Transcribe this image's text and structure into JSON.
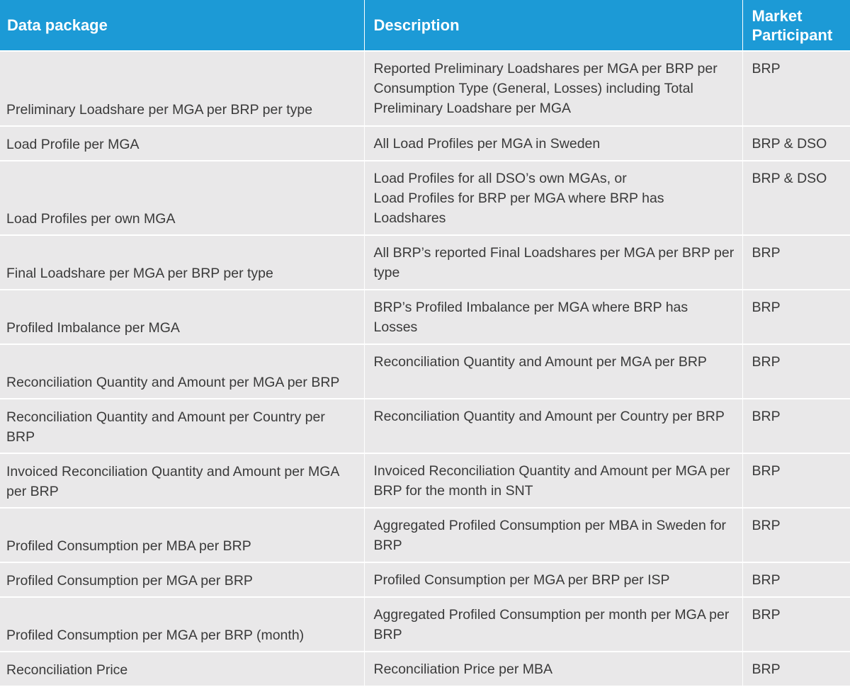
{
  "headers": {
    "package": "Data package",
    "description": "Description",
    "participant": "Market Participant"
  },
  "rows": [
    {
      "package": "Preliminary Loadshare per MGA per BRP per type",
      "description": "Reported Preliminary Loadshares per MGA per BRP per Consumption Type (General, Losses) including Total Preliminary Loadshare per MGA",
      "participant": "BRP"
    },
    {
      "package": "Load Profile per MGA",
      "description": "All Load Profiles per MGA in Sweden",
      "participant": "BRP & DSO"
    },
    {
      "package": "Load Profiles per own MGA",
      "description_lines": [
        "Load Profiles for all DSO’s own MGAs, or",
        "Load Profiles for BRP per MGA where BRP has Loadshares"
      ],
      "participant": "BRP & DSO"
    },
    {
      "package": "Final Loadshare per MGA per BRP per type",
      "description": "All BRP’s reported Final Loadshares per MGA per BRP per type",
      "participant": "BRP"
    },
    {
      "package": "Profiled Imbalance per MGA",
      "description": "BRP’s Profiled Imbalance per MGA where BRP has Losses",
      "participant": "BRP"
    },
    {
      "package": "Reconciliation Quantity and Amount per MGA per BRP",
      "description": "Reconciliation Quantity and Amount per MGA per BRP",
      "participant": "BRP"
    },
    {
      "package": "Reconciliation Quantity and Amount per Country per BRP",
      "description": "Reconciliation Quantity and Amount per Country per BRP",
      "participant": "BRP"
    },
    {
      "package": "Invoiced Reconciliation Quantity and Amount per MGA per BRP",
      "description": "Invoiced Reconciliation Quantity and Amount per MGA per BRP for the month in SNT",
      "participant": "BRP"
    },
    {
      "package": "Profiled Consumption per MBA per BRP",
      "description": "Aggregated Profiled Consumption per MBA in Sweden for BRP",
      "participant": "BRP"
    },
    {
      "package": "Profiled Consumption per MGA per BRP",
      "description": "Profiled Consumption per MGA per BRP per ISP",
      "participant": "BRP"
    },
    {
      "package": "Profiled Consumption per MGA per BRP (month)",
      "description": "Aggregated Profiled Consumption per month per MGA per BRP",
      "participant": "BRP"
    },
    {
      "package": "Reconciliation Price",
      "description": "Reconciliation Price per MBA",
      "participant": "BRP"
    }
  ]
}
